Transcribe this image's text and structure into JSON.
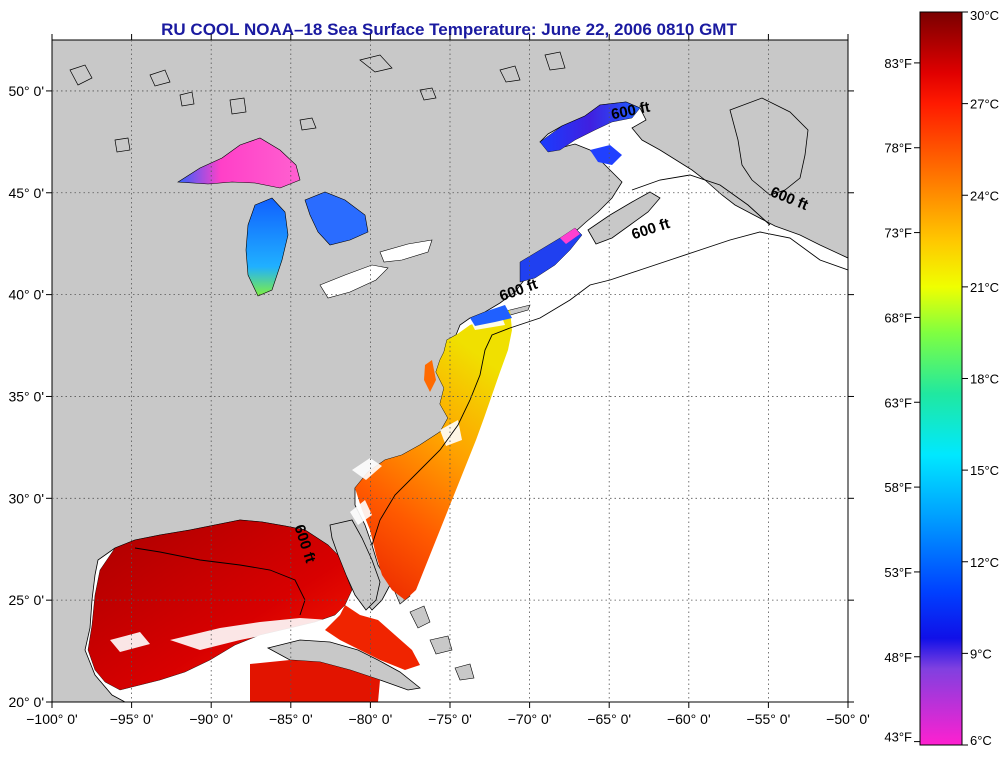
{
  "map": {
    "title": "RU COOL  NOAA–18  Sea Surface Temperature:  June 22, 2006 0810 GMT",
    "projection": "equirectangular",
    "lon_range": [
      -100,
      -50
    ],
    "lat_range": [
      20,
      52.5
    ],
    "graticule": "dotted",
    "background_land_color": "#c8c8c8",
    "no_data_ocean_color": "#ffffff",
    "coastline_color": "#000000",
    "lon_ticks": [
      {
        "value": -100,
        "label": "−100° 0'"
      },
      {
        "value": -95,
        "label": "−95° 0'"
      },
      {
        "value": -90,
        "label": "−90° 0'"
      },
      {
        "value": -85,
        "label": "−85° 0'"
      },
      {
        "value": -80,
        "label": "−80° 0'"
      },
      {
        "value": -75,
        "label": "−75° 0'"
      },
      {
        "value": -70,
        "label": "−70° 0'"
      },
      {
        "value": -65,
        "label": "−65° 0'"
      },
      {
        "value": -60,
        "label": "−60° 0'"
      },
      {
        "value": -55,
        "label": "−55° 0'"
      },
      {
        "value": -50,
        "label": "−50° 0'"
      }
    ],
    "lat_ticks": [
      {
        "value": 20,
        "label": "20° 0'"
      },
      {
        "value": 25,
        "label": "25° 0'"
      },
      {
        "value": 30,
        "label": "30° 0'"
      },
      {
        "value": 35,
        "label": "35° 0'"
      },
      {
        "value": 40,
        "label": "40° 0'"
      },
      {
        "value": 45,
        "label": "45° 0'"
      },
      {
        "value": 50,
        "label": "50° 0'"
      }
    ],
    "isobath_labels": [
      {
        "text": "600 ft",
        "lon": -63.6,
        "lat": 48.8,
        "rotate": -12
      },
      {
        "text": "600 ft",
        "lon": -53.8,
        "lat": 44.5,
        "rotate": 22
      },
      {
        "text": "600 ft",
        "lon": -62.3,
        "lat": 43.0,
        "rotate": -18
      },
      {
        "text": "600 ft",
        "lon": -70.6,
        "lat": 40.0,
        "rotate": -20
      },
      {
        "text": "600 ft",
        "lon": -84.4,
        "lat": 27.7,
        "rotate": 72
      }
    ]
  },
  "colorbar": {
    "min_c": 6,
    "max_c": 30,
    "celsius_labels": [
      {
        "value": 30,
        "label": "30°C"
      },
      {
        "value": 27,
        "label": "27°C"
      },
      {
        "value": 24,
        "label": "24°C"
      },
      {
        "value": 21,
        "label": "21°C"
      },
      {
        "value": 18,
        "label": "18°C"
      },
      {
        "value": 15,
        "label": "15°C"
      },
      {
        "value": 12,
        "label": "12°C"
      },
      {
        "value": 9,
        "label": "9°C"
      },
      {
        "value": 6,
        "label": "6°C"
      }
    ],
    "fahrenheit_labels": [
      {
        "value": 83,
        "label": "83°F"
      },
      {
        "value": 78,
        "label": "78°F"
      },
      {
        "value": 73,
        "label": "73°F"
      },
      {
        "value": 68,
        "label": "68°F"
      },
      {
        "value": 63,
        "label": "63°F"
      },
      {
        "value": 58,
        "label": "58°F"
      },
      {
        "value": 53,
        "label": "53°F"
      },
      {
        "value": 48,
        "label": "48°F"
      },
      {
        "value": 43,
        "label": "43°F"
      }
    ],
    "stops": [
      {
        "c": 30,
        "color": "#7a0000"
      },
      {
        "c": 28,
        "color": "#e00000"
      },
      {
        "c": 27,
        "color": "#ff1a00"
      },
      {
        "c": 24.5,
        "color": "#ff7a00"
      },
      {
        "c": 22.5,
        "color": "#ffc800"
      },
      {
        "c": 21,
        "color": "#f0ff00"
      },
      {
        "c": 19.5,
        "color": "#80ff40"
      },
      {
        "c": 17.5,
        "color": "#20e8a0"
      },
      {
        "c": 15.5,
        "color": "#00e8ff"
      },
      {
        "c": 13.5,
        "color": "#00a0ff"
      },
      {
        "c": 11,
        "color": "#0040ff"
      },
      {
        "c": 9.5,
        "color": "#1010e8"
      },
      {
        "c": 8.5,
        "color": "#8040e0"
      },
      {
        "c": 6,
        "color": "#ff20d0"
      }
    ]
  }
}
